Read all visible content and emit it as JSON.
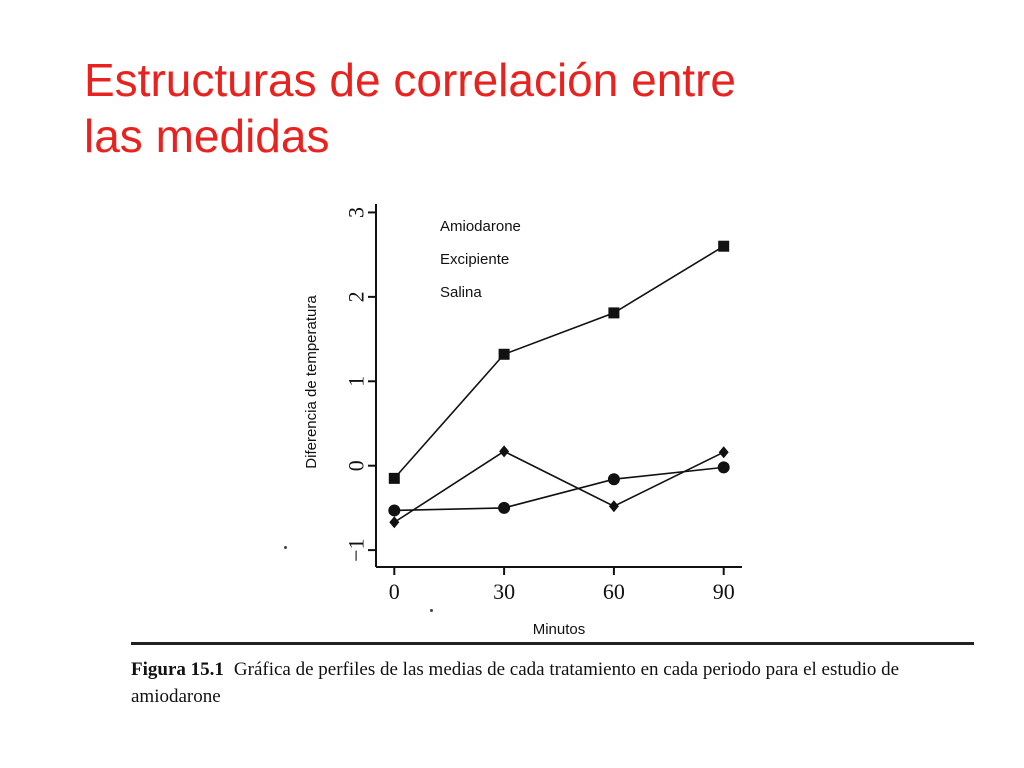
{
  "slide": {
    "title_line1": "Estructuras de correlación entre",
    "title_line2": "las medidas"
  },
  "figure": {
    "caption_label": "Figura 15.1",
    "caption_text": "Gráfica de perfiles de las medias de cada tratamiento en cada periodo para el estudio de amiodarone"
  },
  "colors": {
    "title": "#e8231f",
    "ink": "#111111"
  },
  "chart_data": {
    "type": "line",
    "title": "",
    "xlabel": "Minutos",
    "ylabel": "Diferencia de temperatura",
    "x": [
      0,
      30,
      60,
      90
    ],
    "xlim": [
      -5,
      95
    ],
    "ylim": [
      -1.2,
      3.1
    ],
    "xticks": [
      0,
      30,
      60,
      90
    ],
    "yticks": [
      -1,
      0,
      1,
      2,
      3
    ],
    "grid": false,
    "legend_position": "top-left",
    "series": [
      {
        "name": "Amiodarone",
        "marker": "square",
        "values": [
          -0.15,
          1.32,
          1.81,
          2.6
        ]
      },
      {
        "name": "Excipiente",
        "marker": "diamond",
        "values": [
          -0.67,
          0.17,
          -0.48,
          0.16
        ]
      },
      {
        "name": "Salina",
        "marker": "circle",
        "values": [
          -0.53,
          -0.5,
          -0.16,
          -0.02
        ]
      }
    ]
  }
}
